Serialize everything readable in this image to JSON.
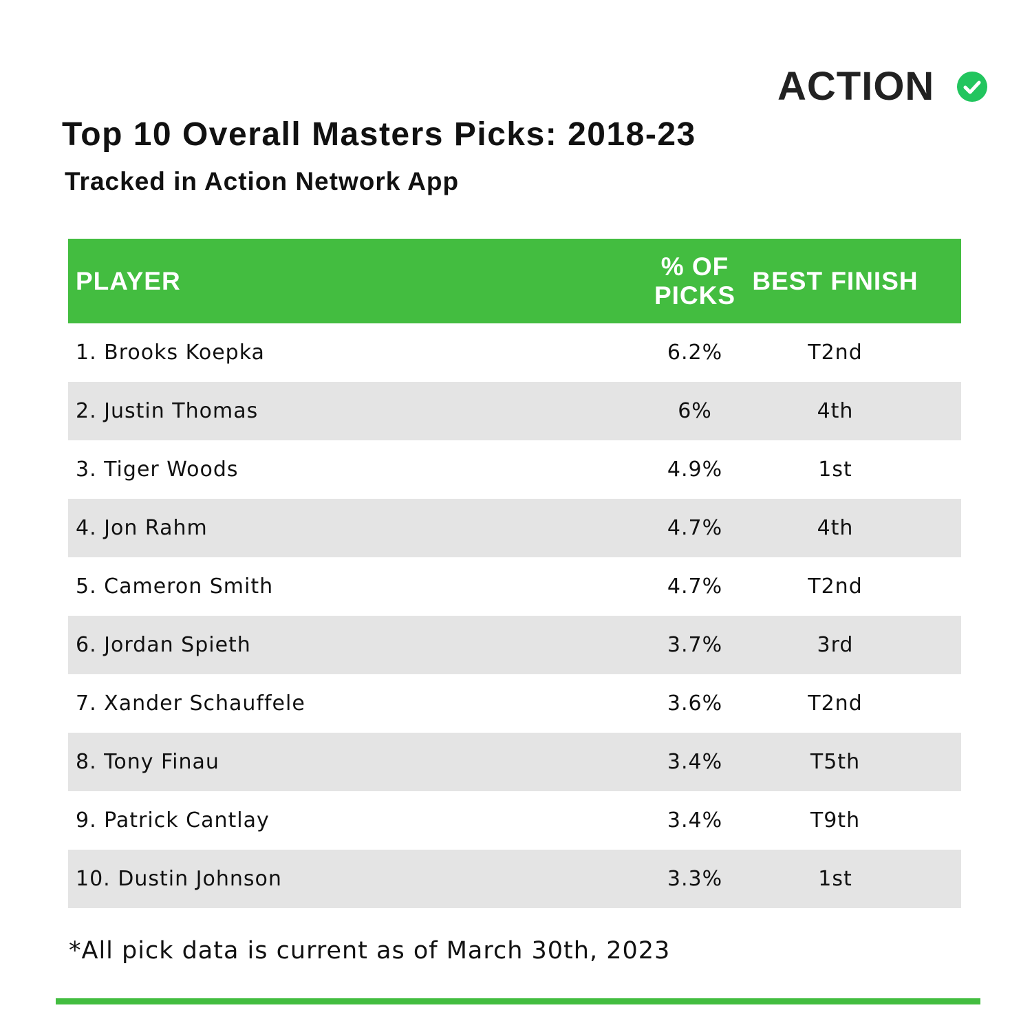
{
  "logo": "ACTION",
  "header": {
    "title": "Top 10 Overall Masters Picks: 2018-23",
    "subtitle": "Tracked in Action Network App"
  },
  "table": {
    "columns": [
      "PLAYER",
      "% OF PICKS",
      "BEST FINISH"
    ],
    "rows": [
      [
        "1. Brooks Koepka",
        "6.2%",
        "T2nd"
      ],
      [
        "2. Justin Thomas",
        "6%",
        "4th"
      ],
      [
        "3. Tiger Woods",
        "4.9%",
        "1st"
      ],
      [
        "4. Jon Rahm",
        "4.7%",
        "4th"
      ],
      [
        "5. Cameron Smith",
        "4.7%",
        "T2nd"
      ],
      [
        "6. Jordan Spieth",
        "3.7%",
        "3rd"
      ],
      [
        "7. Xander Schauffele",
        "3.6%",
        "T2nd"
      ],
      [
        "8. Tony Finau",
        "3.4%",
        "T5th"
      ],
      [
        "9. Patrick Cantlay",
        "3.4%",
        "T9th"
      ],
      [
        "10. Dustin Johnson",
        "3.3%",
        "1st"
      ]
    ]
  },
  "footnote": "*All pick data is current as of March 30th, 2023"
}
